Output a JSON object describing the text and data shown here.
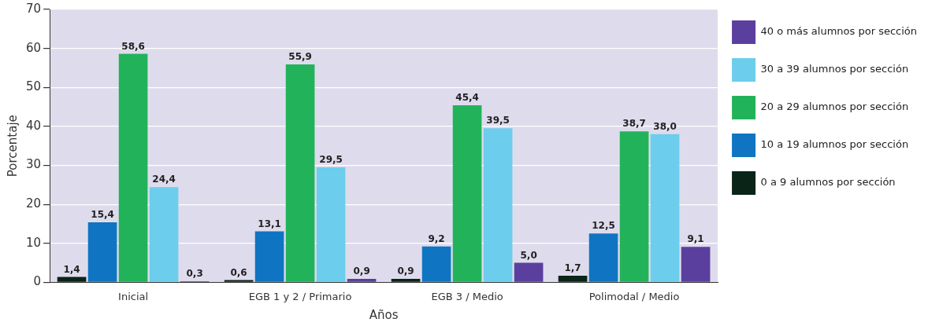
{
  "chart_data": {
    "type": "bar",
    "xlabel": "Años",
    "ylabel": "Porcentaje",
    "categories": [
      "Inicial",
      "EGB 1 y 2 / Primario",
      "EGB 3 / Medio",
      "Polimodal / Medio"
    ],
    "series": [
      {
        "name": "0 a 9 alumnos por sección",
        "color": "#0a2418",
        "values": [
          1.4,
          0.6,
          0.9,
          1.7
        ],
        "value_labels": [
          "1,4",
          "0,6",
          "0,9",
          "1,7"
        ]
      },
      {
        "name": "10 a 19 alumnos por sección",
        "color": "#0f75c2",
        "values": [
          15.4,
          13.1,
          9.2,
          12.5
        ],
        "value_labels": [
          "15,4",
          "13,1",
          "9,2",
          "12,5"
        ]
      },
      {
        "name": "20 a 29 alumnos por sección",
        "color": "#22b35a",
        "values": [
          58.6,
          55.9,
          45.4,
          38.7
        ],
        "value_labels": [
          "58,6",
          "55,9",
          "45,4",
          "38,7"
        ]
      },
      {
        "name": "30 a 39 alumnos por sección",
        "color": "#6dcdec",
        "values": [
          24.4,
          29.5,
          39.5,
          38.0
        ],
        "value_labels": [
          "24,4",
          "29,5",
          "39,5",
          "38,0"
        ]
      },
      {
        "name": "40 o más alumnos por sección",
        "color": "#5b3f9e",
        "values": [
          0.3,
          0.9,
          5.0,
          9.1
        ],
        "value_labels": [
          "0,3",
          "0,9",
          "5,0",
          "9,1"
        ]
      }
    ],
    "ylim": [
      0,
      70
    ],
    "yticks": [
      0,
      10,
      20,
      30,
      40,
      50,
      60,
      70
    ],
    "grid": "y",
    "legend": "right"
  }
}
